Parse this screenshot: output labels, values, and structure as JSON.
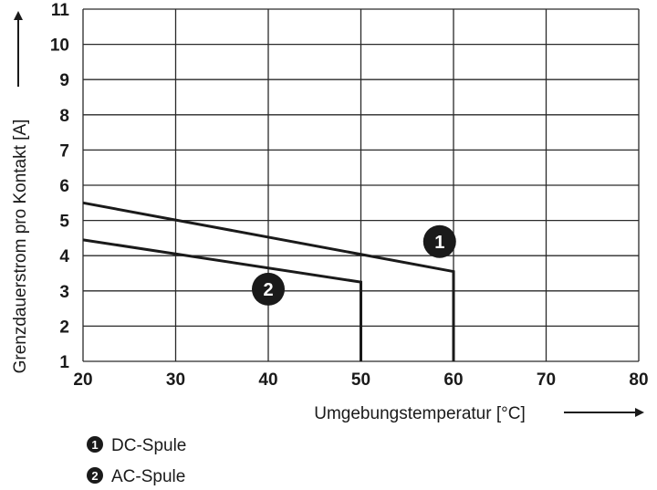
{
  "chart_data": {
    "type": "line",
    "xlabel": "Umgebungstemperatur [°C]",
    "ylabel": "Grenzdauerstrom pro Kontakt [A]",
    "xlim": [
      20,
      80
    ],
    "ylim": [
      1,
      11
    ],
    "x_ticks": [
      "20",
      "30",
      "40",
      "50",
      "60",
      "70",
      "80"
    ],
    "y_ticks": [
      "1",
      "2",
      "3",
      "4",
      "5",
      "6",
      "7",
      "8",
      "9",
      "10",
      "11"
    ],
    "grid": true,
    "series": [
      {
        "marker": "1",
        "name": "DC-Spule",
        "points": [
          [
            20,
            5.5
          ],
          [
            60,
            3.55
          ],
          [
            60,
            1
          ]
        ],
        "marker_pos": [
          58.5,
          4.4
        ]
      },
      {
        "marker": "2",
        "name": "AC-Spule",
        "points": [
          [
            20,
            4.45
          ],
          [
            50,
            3.25
          ],
          [
            50,
            1
          ]
        ],
        "marker_pos": [
          40,
          3.05
        ]
      }
    ],
    "legend": [
      {
        "marker": "1",
        "label": "DC-Spule"
      },
      {
        "marker": "2",
        "label": "AC-Spule"
      }
    ],
    "legend_placement": "bottom-left"
  }
}
